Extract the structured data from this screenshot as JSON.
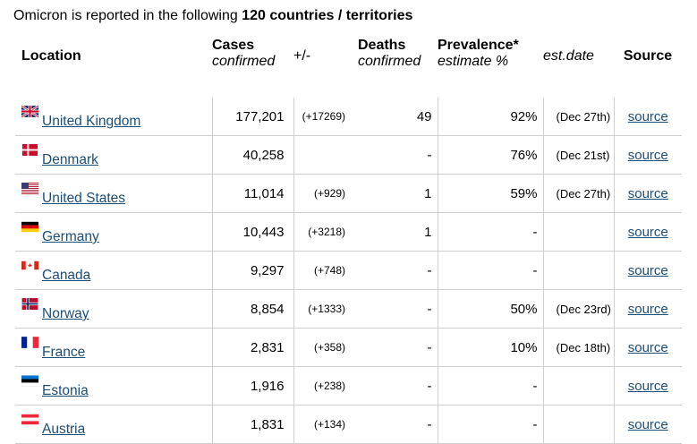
{
  "title_prefix": "Omicron is reported in the following ",
  "title_bold": "120 countries / territories",
  "headers": {
    "location": "Location",
    "cases": "Cases",
    "cases_sub": "confirmed",
    "change": "+/-",
    "deaths": "Deaths",
    "deaths_sub": "confirmed",
    "prevalence": "Prevalence*",
    "prevalence_sub": "estimate %",
    "est_date": "est.date",
    "source": "Source"
  },
  "rows": [
    {
      "flag": "uk",
      "location": "United Kingdom",
      "cases": "177,201",
      "change": "(+17269)",
      "deaths": "49",
      "prevalence": "92%",
      "est_date": "(Dec 27th)",
      "source": "source"
    },
    {
      "flag": "dk",
      "location": "Denmark",
      "cases": "40,258",
      "change": "",
      "deaths": "-",
      "prevalence": "76%",
      "est_date": "(Dec 21st)",
      "source": "source"
    },
    {
      "flag": "us",
      "location": "United States",
      "cases": "11,014",
      "change": "(+929)",
      "deaths": "1",
      "prevalence": "59%",
      "est_date": "(Dec 27th)",
      "source": "source"
    },
    {
      "flag": "de",
      "location": "Germany",
      "cases": "10,443",
      "change": "(+3218)",
      "deaths": "1",
      "prevalence": "-",
      "est_date": "",
      "source": "source"
    },
    {
      "flag": "ca",
      "location": "Canada",
      "cases": "9,297",
      "change": "(+748)",
      "deaths": "-",
      "prevalence": "-",
      "est_date": "",
      "source": "source"
    },
    {
      "flag": "no",
      "location": "Norway",
      "cases": "8,854",
      "change": "(+1333)",
      "deaths": "-",
      "prevalence": "50%",
      "est_date": "(Dec 23rd)",
      "source": "source"
    },
    {
      "flag": "fr",
      "location": "France",
      "cases": "2,831",
      "change": "(+358)",
      "deaths": "-",
      "prevalence": "10%",
      "est_date": "(Dec 18th)",
      "source": "source"
    },
    {
      "flag": "ee",
      "location": "Estonia",
      "cases": "1,916",
      "change": "(+238)",
      "deaths": "-",
      "prevalence": "-",
      "est_date": "",
      "source": "source"
    },
    {
      "flag": "at",
      "location": "Austria",
      "cases": "1,831",
      "change": "(+134)",
      "deaths": "-",
      "prevalence": "-",
      "est_date": "",
      "source": "source"
    }
  ],
  "colors": {
    "link": "#1d4e75",
    "grid": "#cfcfcf"
  }
}
